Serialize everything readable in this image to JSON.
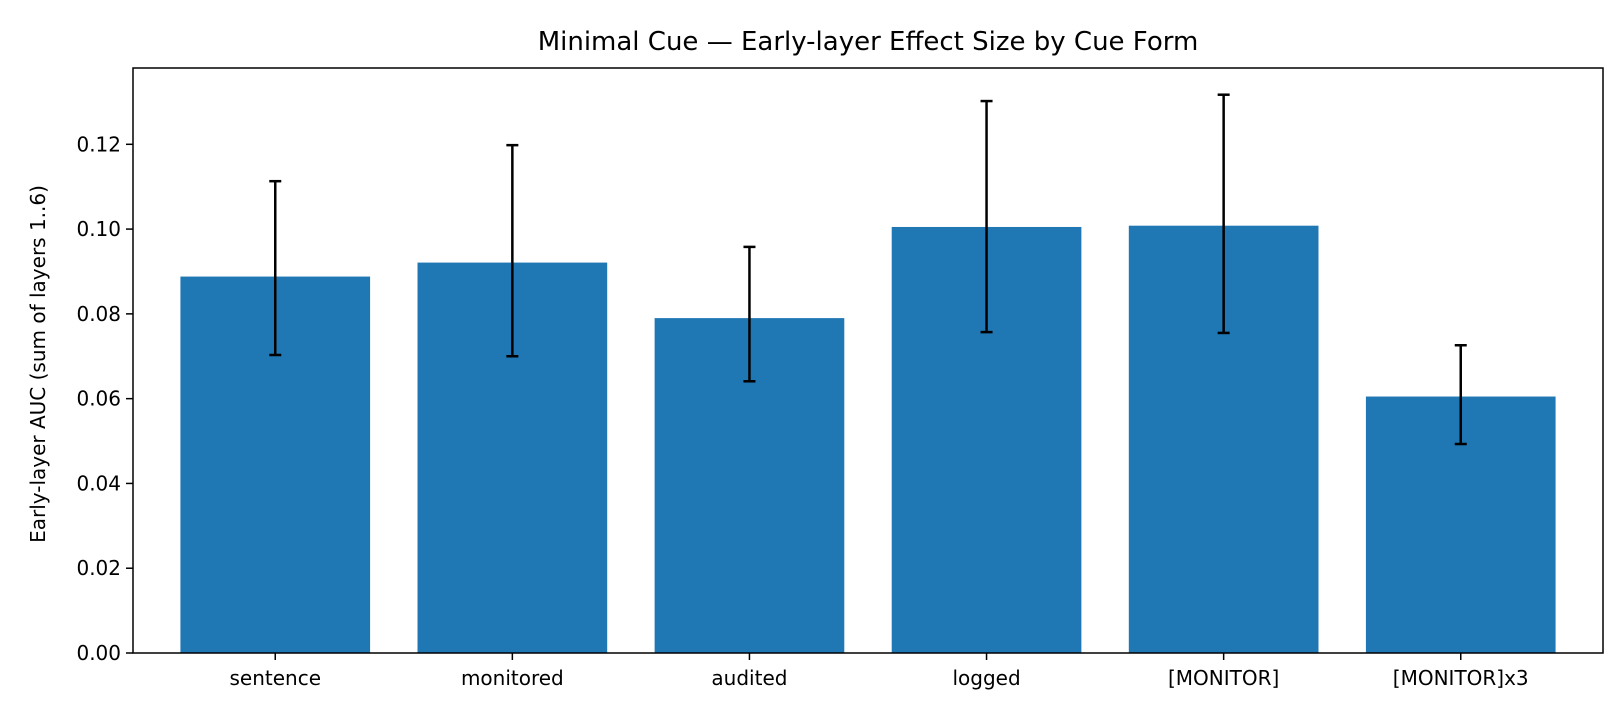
{
  "chart_data": {
    "type": "bar",
    "title": "Minimal Cue — Early-layer Effect Size by Cue Form",
    "xlabel": "",
    "ylabel": "Early-layer AUC (sum of layers 1..6)",
    "categories": [
      "sentence",
      "monitored",
      "audited",
      "logged",
      "[MONITOR]",
      "[MONITOR]x3"
    ],
    "values": [
      0.0888,
      0.0921,
      0.079,
      0.1005,
      0.1008,
      0.0605
    ],
    "error_low": [
      0.0703,
      0.07,
      0.0641,
      0.0757,
      0.0755,
      0.0493
    ],
    "error_high": [
      0.1113,
      0.1198,
      0.0958,
      0.1302,
      0.1317,
      0.0726
    ],
    "ylim": [
      0,
      0.138
    ],
    "yticks": [
      0.0,
      0.02,
      0.04,
      0.06,
      0.08,
      0.1,
      0.12
    ],
    "ytick_labels": [
      "0.00",
      "0.02",
      "0.04",
      "0.06",
      "0.08",
      "0.10",
      "0.12"
    ],
    "grid": false,
    "legend": "none",
    "bar_color": "#1f77b4",
    "error_color": "#000000"
  }
}
